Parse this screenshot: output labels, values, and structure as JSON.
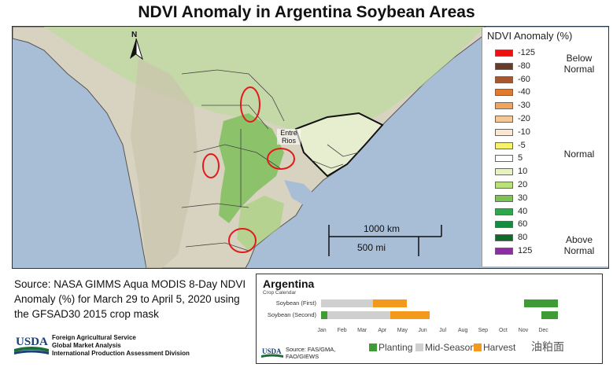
{
  "title": "NDVI Anomaly in Argentina Soybean Areas",
  "north_label": "N",
  "map_labels": {
    "entre_rios": "Entre Rios",
    "scale_km": "1000 km",
    "scale_mi": "500 mi"
  },
  "legend": {
    "title": "NDVI Anomaly (%)",
    "side_top": "Below Normal",
    "side_mid": "Normal",
    "side_bottom": "Above Normal",
    "classes": [
      {
        "label": "-125",
        "color": "#ee1111"
      },
      {
        "label": "-80",
        "color": "#6b3a26"
      },
      {
        "label": "-60",
        "color": "#a5582f"
      },
      {
        "label": "-40",
        "color": "#e17a2c"
      },
      {
        "label": "-30",
        "color": "#f2a35c"
      },
      {
        "label": "-20",
        "color": "#f5c898"
      },
      {
        "label": "-10",
        "color": "#fae7cd"
      },
      {
        "label": "-5",
        "color": "#f7f26b"
      },
      {
        "label": "5",
        "color": "#ffffff"
      },
      {
        "label": "10",
        "color": "#e6f3bd"
      },
      {
        "label": "20",
        "color": "#b9e17a"
      },
      {
        "label": "30",
        "color": "#79c54f"
      },
      {
        "label": "40",
        "color": "#2ea84a"
      },
      {
        "label": "60",
        "color": "#128c3f"
      },
      {
        "label": "80",
        "color": "#0d6b2a"
      },
      {
        "label": "125",
        "color": "#8b2fa0"
      }
    ]
  },
  "source_text": "Source: NASA GIMMS Aqua MODIS 8-Day NDVI Anomaly (%) for March 29 to April 5, 2020 using the GFSAD30 2015 crop mask",
  "usda": {
    "logo_text": "USDA",
    "line1": "Foreign Agricultural Service",
    "line2": "Global Market Analysis",
    "line3": "International Production Assessment Division"
  },
  "calendar": {
    "title": "Argentina",
    "subtitle": "Crop Calendar",
    "months": [
      "Jan",
      "Feb",
      "Mar",
      "Apr",
      "May",
      "Jun",
      "Jul",
      "Aug",
      "Sep",
      "Oct",
      "Nov",
      "Dec"
    ],
    "crops": [
      {
        "name": "Soybean (First)"
      },
      {
        "name": "Soybean (Second)"
      }
    ],
    "source": "Source: FAS/GMA, FAO/GIEWS",
    "key": {
      "planting": "Planting",
      "mid": "Mid-Season",
      "harvest": "Harvest"
    },
    "colors": {
      "planting": "#3f9b35",
      "mid": "#cfcfcf",
      "harvest": "#f39a1c"
    }
  },
  "watermark": "油粕面"
}
